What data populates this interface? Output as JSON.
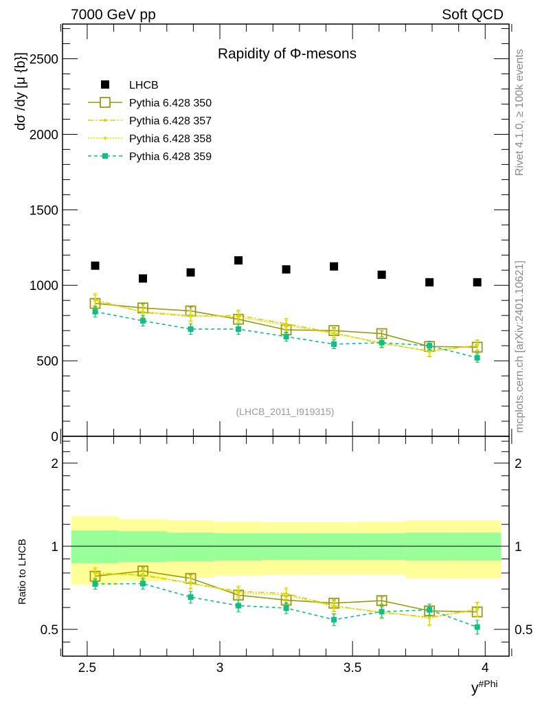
{
  "header": {
    "left": "7000 GeV pp",
    "right": "Soft QCD"
  },
  "side_labels": {
    "rivet": "Rivet 4.1.0, ≥ 100k events",
    "mcplots": "mcplots.cern.ch [arXiv:2401.10621]"
  },
  "chart_data": [
    {
      "type": "scatter",
      "title": "Rapidity of Φ-mesons",
      "annotation": "(LHCB_2011_I919315)",
      "ylabel": "dσ /dy [μ {b}]",
      "xlabel_base": "y",
      "xlabel_sup": "#Phi",
      "xlim": [
        2.407,
        4.09
      ],
      "ylim": [
        0,
        2730
      ],
      "x_ticks": [
        "2.5",
        "3",
        "3.5",
        "4"
      ],
      "y_ticks": [
        "0",
        "500",
        "1000",
        "1500",
        "2000",
        "2500"
      ],
      "legend_position": "top-left",
      "x": [
        2.53,
        2.71,
        2.89,
        3.07,
        3.25,
        3.43,
        3.61,
        3.79,
        3.97
      ],
      "bin_edges": [
        2.44,
        2.62,
        2.8,
        2.98,
        3.16,
        3.34,
        3.52,
        3.7,
        3.88,
        4.06
      ],
      "series": [
        {
          "name": "LHCB",
          "color": "#000000",
          "style": "data",
          "values": [
            1130,
            1045,
            1085,
            1165,
            1105,
            1125,
            1070,
            1020,
            1020
          ]
        },
        {
          "name": "Pythia 6.428 350",
          "color": "#9a9a10",
          "style": "solid-openbox",
          "values": [
            880,
            850,
            830,
            775,
            705,
            700,
            680,
            595,
            590
          ],
          "errors": [
            25,
            25,
            25,
            20,
            20,
            20,
            20,
            20,
            20
          ]
        },
        {
          "name": "Pythia 6.428 357",
          "color": "#e6c800",
          "style": "dashdot",
          "values": [
            905,
            820,
            795,
            800,
            745,
            685,
            615,
            565,
            600
          ],
          "errors": [
            40,
            35,
            35,
            35,
            35,
            30,
            30,
            35,
            35
          ]
        },
        {
          "name": "Pythia 6.428 358",
          "color": "#d8e000",
          "style": "dotted",
          "values": [
            895,
            825,
            800,
            790,
            735,
            680,
            620,
            560,
            605
          ],
          "errors": [
            40,
            35,
            35,
            35,
            35,
            30,
            30,
            35,
            35
          ]
        },
        {
          "name": "Pythia 6.428 359",
          "color": "#10c080",
          "style": "dashed-filledbox",
          "values": [
            825,
            765,
            710,
            710,
            660,
            610,
            620,
            600,
            520
          ],
          "errors": [
            35,
            35,
            35,
            35,
            30,
            30,
            30,
            30,
            30
          ]
        }
      ]
    },
    {
      "type": "scatter",
      "ylabel": "Ratio to LHCB",
      "yscale": "log",
      "ylim": [
        0.4,
        2.5
      ],
      "y_ticks": [
        "0.5",
        "1",
        "2"
      ],
      "band_yellow_up": [
        1.284,
        1.255,
        1.241,
        1.227,
        1.22,
        1.22,
        1.227,
        1.241,
        1.241
      ],
      "band_yellow_down": [
        0.727,
        0.748,
        0.77,
        0.783,
        0.788,
        0.788,
        0.788,
        0.765,
        0.765
      ],
      "band_green_up": [
        1.14,
        1.133,
        1.12,
        1.114,
        1.114,
        1.114,
        1.114,
        1.12,
        1.12
      ],
      "band_green_down": [
        0.868,
        0.877,
        0.882,
        0.887,
        0.892,
        0.892,
        0.892,
        0.887,
        0.887
      ]
    }
  ]
}
